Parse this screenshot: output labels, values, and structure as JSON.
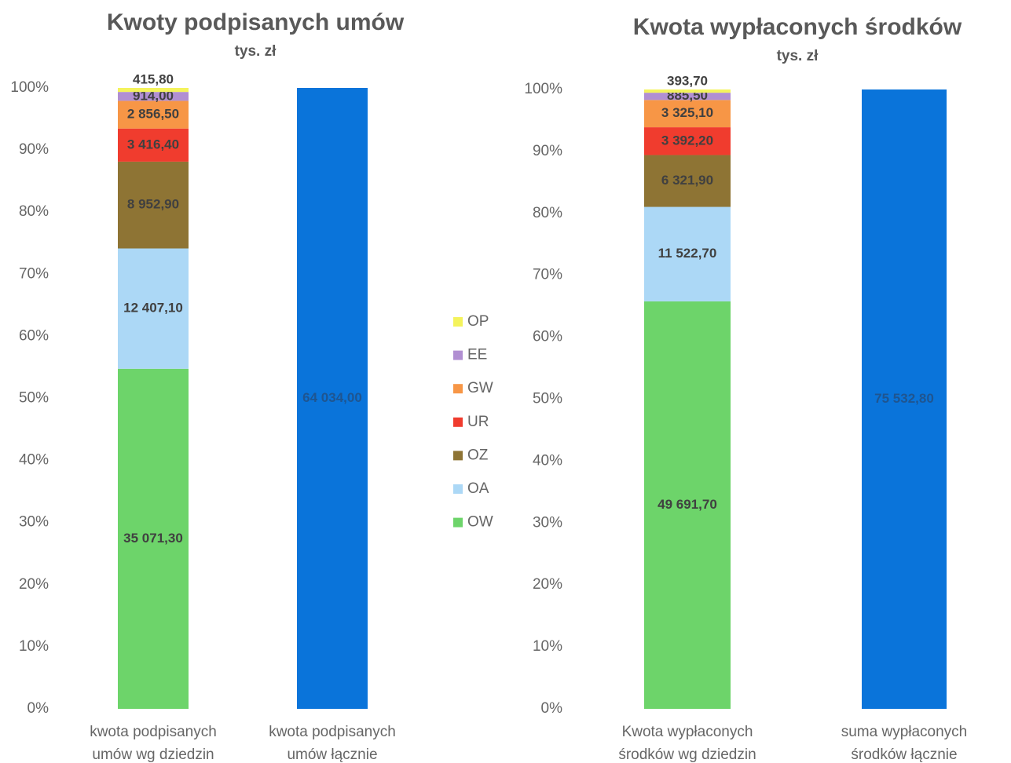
{
  "chart_data": [
    {
      "type": "bar",
      "stacking": "percent",
      "title": "Kwoty podpisanych umów",
      "subtitle": "tys. zł",
      "categories": [
        "kwota podpisanych umów wg dziedzin",
        "kwota podpisanych umów łącznie"
      ],
      "ylim": [
        0,
        100
      ],
      "yticks": [
        {
          "value": 0,
          "label": "0%"
        },
        {
          "value": 10,
          "label": "10%"
        },
        {
          "value": 20,
          "label": "20%"
        },
        {
          "value": 30,
          "label": "30%"
        },
        {
          "value": 40,
          "label": "40%"
        },
        {
          "value": 50,
          "label": "50%"
        },
        {
          "value": 60,
          "label": "60%"
        },
        {
          "value": 70,
          "label": "70%"
        },
        {
          "value": 80,
          "label": "80%"
        },
        {
          "value": 90,
          "label": "90%"
        },
        {
          "value": 100,
          "label": "100%"
        }
      ],
      "series": [
        {
          "name": "OW",
          "color": "#6dd46a",
          "values": [
            35071.3,
            null
          ],
          "value_labels": [
            "35 071,30",
            null
          ]
        },
        {
          "name": "OA",
          "color": "#acd8f6",
          "values": [
            12407.1,
            null
          ],
          "value_labels": [
            "12 407,10",
            null
          ]
        },
        {
          "name": "OZ",
          "color": "#8e7434",
          "values": [
            8952.9,
            null
          ],
          "value_labels": [
            "8 952,90",
            null
          ]
        },
        {
          "name": "UR",
          "color": "#f03c2e",
          "values": [
            3416.4,
            null
          ],
          "value_labels": [
            "3 416,40",
            null
          ]
        },
        {
          "name": "GW",
          "color": "#f79646",
          "values": [
            2856.5,
            null
          ],
          "value_labels": [
            "2 856,50",
            null
          ]
        },
        {
          "name": "EE",
          "color": "#b18fd2",
          "values": [
            914.0,
            null
          ],
          "value_labels": [
            "914,00",
            null
          ]
        },
        {
          "name": "OP",
          "color": "#f4f35c",
          "values": [
            415.8,
            null
          ],
          "value_labels": [
            "415,80",
            null
          ]
        }
      ],
      "total_bar": {
        "color": "#0a74da",
        "values": [
          null,
          64034.0
        ],
        "value_labels": [
          null,
          "64 034,00"
        ]
      }
    },
    {
      "type": "bar",
      "stacking": "percent",
      "title": "Kwota wypłaconych środków",
      "subtitle": "tys. zł",
      "categories": [
        "Kwota wypłaconych środków wg dziedzin",
        "suma wypłaconych środków łącznie"
      ],
      "ylim": [
        0,
        100
      ],
      "yticks": [
        {
          "value": 0,
          "label": "0%"
        },
        {
          "value": 10,
          "label": "10%"
        },
        {
          "value": 20,
          "label": "20%"
        },
        {
          "value": 30,
          "label": "30%"
        },
        {
          "value": 40,
          "label": "40%"
        },
        {
          "value": 50,
          "label": "50%"
        },
        {
          "value": 60,
          "label": "60%"
        },
        {
          "value": 70,
          "label": "70%"
        },
        {
          "value": 80,
          "label": "80%"
        },
        {
          "value": 90,
          "label": "90%"
        },
        {
          "value": 100,
          "label": "100%"
        }
      ],
      "series": [
        {
          "color": "#6dd46a",
          "values": [
            49691.7,
            null
          ],
          "value_labels": [
            "49 691,70",
            null
          ]
        },
        {
          "color": "#acd8f6",
          "values": [
            11522.7,
            null
          ],
          "value_labels": [
            "11 522,70",
            null
          ]
        },
        {
          "color": "#8e7434",
          "values": [
            6321.9,
            null
          ],
          "value_labels": [
            "6 321,90",
            null
          ]
        },
        {
          "color": "#f03c2e",
          "values": [
            3392.2,
            null
          ],
          "value_labels": [
            "3 392,20",
            null
          ]
        },
        {
          "color": "#f79646",
          "values": [
            3325.1,
            null
          ],
          "value_labels": [
            "3 325,10",
            null
          ]
        },
        {
          "color": "#b18fd2",
          "values": [
            885.5,
            null
          ],
          "value_labels": [
            "885,50",
            null
          ]
        },
        {
          "color": "#f4f35c",
          "values": [
            393.7,
            null
          ],
          "value_labels": [
            "393,70",
            null
          ]
        }
      ],
      "total_bar": {
        "color": "#0a74da",
        "values": [
          null,
          75532.8
        ],
        "value_labels": [
          null,
          "75 532,80"
        ]
      }
    }
  ]
}
